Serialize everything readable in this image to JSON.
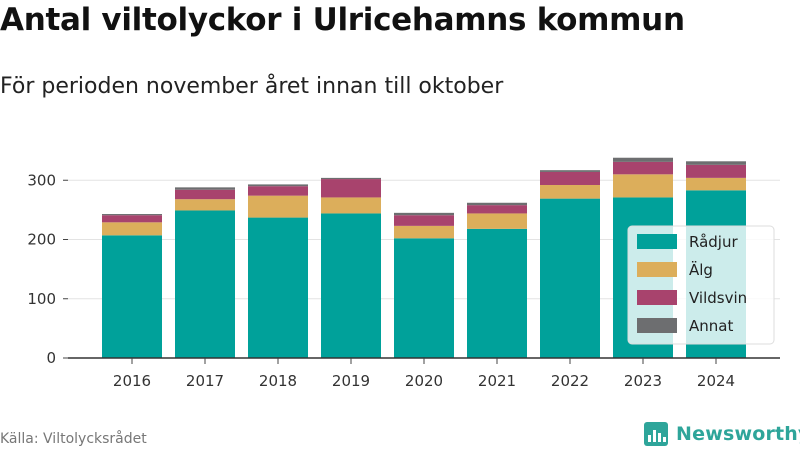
{
  "title": "Antal viltolyckor i Ulricehamns kommun",
  "subtitle": "För perioden november året innan till oktober",
  "source": "Källa: Viltolycksrådet",
  "logo": {
    "text": "Newsworthy",
    "icon": "bar-chart-logo-icon",
    "color": "#2ea59a"
  },
  "chart_data": {
    "type": "bar",
    "stacked": true,
    "categories": [
      "2016",
      "2017",
      "2018",
      "2019",
      "2020",
      "2021",
      "2022",
      "2023",
      "2024"
    ],
    "series": [
      {
        "name": "Rådjur",
        "color": "#00a19a",
        "values": [
          207,
          249,
          237,
          244,
          202,
          218,
          269,
          271,
          283
        ]
      },
      {
        "name": "Älg",
        "color": "#dcae5b",
        "values": [
          22,
          19,
          37,
          27,
          21,
          26,
          23,
          39,
          21
        ]
      },
      {
        "name": "Vildsvin",
        "color": "#a8436d",
        "values": [
          12,
          16,
          16,
          31,
          18,
          14,
          22,
          21,
          22
        ]
      },
      {
        "name": "Annat",
        "color": "#6d6e70",
        "values": [
          2,
          4,
          3,
          2,
          4,
          4,
          3,
          7,
          6
        ]
      }
    ],
    "y_ticks": [
      0,
      100,
      200,
      300
    ],
    "ylim": [
      0,
      340
    ],
    "grid": true,
    "legend": "right",
    "xlabel": "",
    "ylabel": ""
  }
}
